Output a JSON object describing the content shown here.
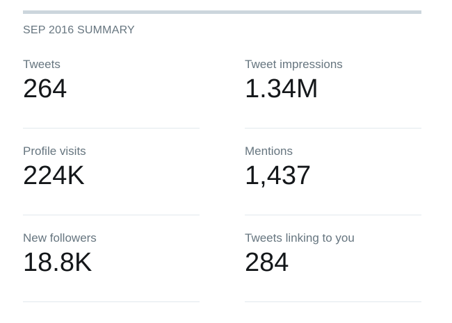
{
  "summary": {
    "title": "SEP 2016 SUMMARY",
    "stats": [
      {
        "label": "Tweets",
        "value": "264"
      },
      {
        "label": "Tweet impressions",
        "value": "1.34M"
      },
      {
        "label": "Profile visits",
        "value": "224K"
      },
      {
        "label": "Mentions",
        "value": "1,437"
      },
      {
        "label": "New followers",
        "value": "18.8K"
      },
      {
        "label": "Tweets linking to you",
        "value": "284"
      }
    ]
  },
  "colors": {
    "rule": "#ccd6dd",
    "divider": "#e1e8ed",
    "label": "#66757f",
    "value": "#14171a"
  }
}
